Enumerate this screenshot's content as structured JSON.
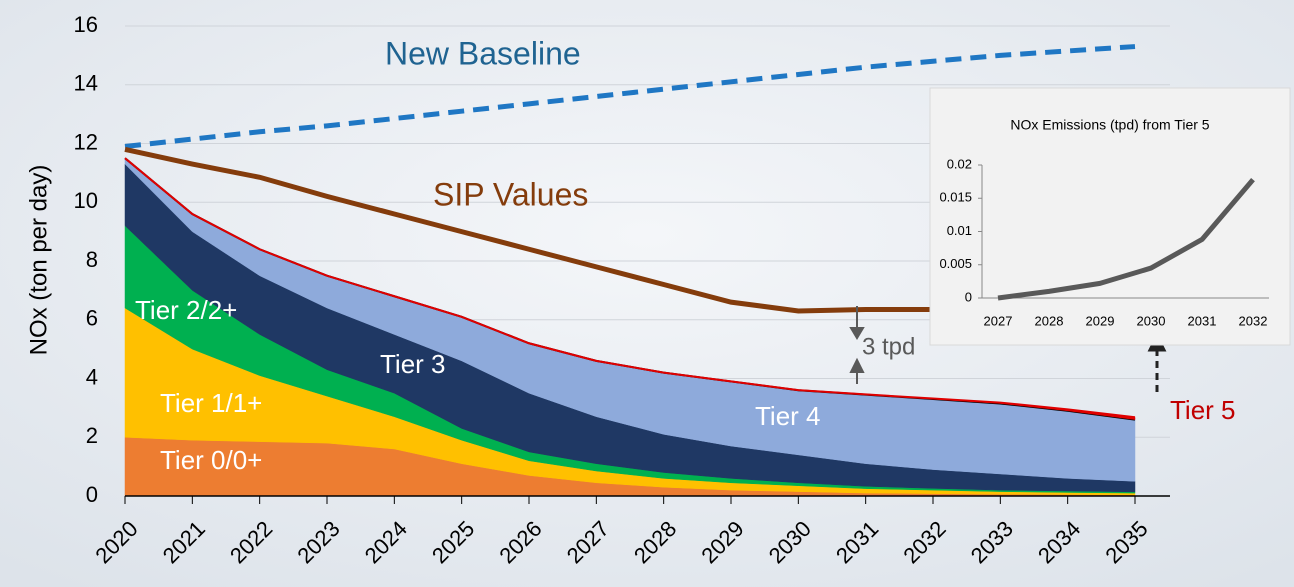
{
  "chart_data": [
    {
      "type": "area",
      "y_label": "NOx (ton per day)",
      "categories": [
        "2020",
        "2021",
        "2022",
        "2023",
        "2024",
        "2025",
        "2026",
        "2027",
        "2028",
        "2029",
        "2030",
        "2031",
        "2032",
        "2033",
        "2034",
        "2035"
      ],
      "ylim": [
        0,
        16
      ],
      "yticks": [
        0,
        2,
        4,
        6,
        8,
        10,
        12,
        14,
        16
      ],
      "grid": true,
      "series": [
        {
          "name": "Tier 0/0+",
          "color": "#ed7d31",
          "label_color": "#ffffff",
          "values": [
            2.0,
            1.9,
            1.85,
            1.8,
            1.6,
            1.1,
            0.7,
            0.45,
            0.3,
            0.2,
            0.15,
            0.1,
            0.08,
            0.06,
            0.05,
            0.04
          ]
        },
        {
          "name": "Tier 1/1+",
          "color": "#ffc000",
          "label_color": "#ffffff",
          "values": [
            4.4,
            3.1,
            2.25,
            1.6,
            1.1,
            0.8,
            0.5,
            0.4,
            0.3,
            0.25,
            0.2,
            0.15,
            0.12,
            0.09,
            0.07,
            0.06
          ]
        },
        {
          "name": "Tier 2/2+",
          "color": "#00b050",
          "label_color": "#ffffff",
          "values": [
            2.8,
            2.0,
            1.4,
            0.9,
            0.8,
            0.4,
            0.3,
            0.25,
            0.2,
            0.15,
            0.1,
            0.08,
            0.06,
            0.05,
            0.05,
            0.04
          ]
        },
        {
          "name": "Tier 3",
          "color": "#1f3864",
          "label_color": "#ffffff",
          "values": [
            2.1,
            2.0,
            2.0,
            2.1,
            2.0,
            2.3,
            2.0,
            1.6,
            1.3,
            1.1,
            0.95,
            0.77,
            0.64,
            0.55,
            0.43,
            0.36
          ]
        },
        {
          "name": "Tier 4",
          "color": "#8eaadb",
          "label_color": "#ffffff",
          "values": [
            0.2,
            0.6,
            0.9,
            1.1,
            1.3,
            1.5,
            1.7,
            1.9,
            2.1,
            2.2,
            2.2,
            2.35,
            2.4,
            2.4,
            2.3,
            2.1
          ]
        },
        {
          "name": "Tier 5",
          "color": "#e00000",
          "label_color": "#c00000",
          "values": [
            0,
            0,
            0,
            0,
            0,
            0,
            0,
            0,
            0.001,
            0.002,
            0.004,
            0.009,
            0.018,
            0.03,
            0.05,
            0.08
          ]
        }
      ],
      "lines": [
        {
          "name": "New Baseline",
          "color": "#1f77c4",
          "label_color": "#1f6391",
          "dashed": true,
          "values": [
            11.9,
            12.15,
            12.4,
            12.6,
            12.85,
            13.1,
            13.35,
            13.6,
            13.85,
            14.1,
            14.35,
            14.6,
            14.8,
            15.0,
            15.15,
            15.3
          ]
        },
        {
          "name": "SIP Values",
          "color": "#843c0c",
          "label_color": "#843c0c",
          "dashed": false,
          "values": [
            11.8,
            11.3,
            10.85,
            10.2,
            9.6,
            9.0,
            8.4,
            7.8,
            7.2,
            6.6,
            6.3,
            6.35,
            6.35,
            6.35,
            6.35,
            6.35
          ]
        }
      ],
      "annotation": "3 tpd"
    },
    {
      "type": "line",
      "title": "NOx Emissions (tpd) from Tier 5",
      "categories": [
        "2027",
        "2028",
        "2029",
        "2030",
        "2031",
        "2032"
      ],
      "ylim": [
        0,
        0.02
      ],
      "yticks": [
        0,
        0.005,
        0.01,
        0.015,
        0.02
      ],
      "color": "#595959",
      "values": [
        0,
        0.001,
        0.0022,
        0.0045,
        0.0088,
        0.0178
      ]
    }
  ]
}
